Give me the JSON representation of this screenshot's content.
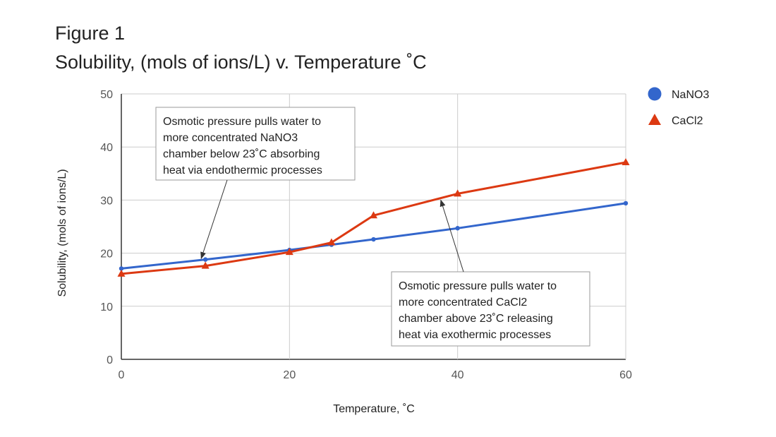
{
  "figure": {
    "title": "Figure 1",
    "subtitle": "Solubility, (mols of ions/L) v. Temperature ˚C"
  },
  "chart_data": {
    "type": "line",
    "title": "Solubility, (mols of ions/L) v. Temperature ˚C",
    "xlabel": "Temperature, ˚C",
    "ylabel": "Solubility, (mols of ions/L)",
    "xlim": [
      0,
      60
    ],
    "ylim": [
      0,
      50
    ],
    "xticks": [
      0,
      20,
      40,
      60
    ],
    "yticks": [
      0,
      10,
      20,
      30,
      40,
      50
    ],
    "grid": true,
    "legend": "right",
    "series": [
      {
        "name": "NaNO3",
        "color": "#3366cc",
        "marker": "circle",
        "x": [
          0,
          10,
          20,
          25,
          30,
          40,
          60
        ],
        "values": [
          17.1,
          18.8,
          20.6,
          21.6,
          22.6,
          24.7,
          29.4
        ]
      },
      {
        "name": "CaCl2",
        "color": "#dc3912",
        "marker": "triangle",
        "x": [
          0,
          10,
          20,
          25,
          30,
          40,
          60
        ],
        "values": [
          16.1,
          17.6,
          20.2,
          22.0,
          27.1,
          31.2,
          37.1
        ]
      }
    ],
    "annotations": [
      {
        "lines": [
          "Osmotic pressure pulls water to",
          "more concentrated NaNO3",
          "chamber below 23˚C absorbing",
          "heat via endothermic processes"
        ],
        "target_x": 9.5,
        "target_y": 19.0
      },
      {
        "lines": [
          "Osmotic pressure pulls water to",
          "more concentrated CaCl2",
          "chamber above 23˚C releasing",
          "heat via exothermic processes"
        ],
        "target_x": 38,
        "target_y": 30.0
      }
    ]
  }
}
